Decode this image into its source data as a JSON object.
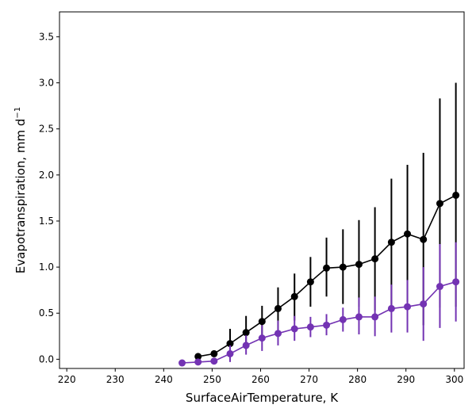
{
  "chart_data": {
    "type": "line",
    "xlabel": "SurfaceAirTemperature,  K",
    "ylabel": "Evapotranspiration,  mm d",
    "ylabel_superscript": "−1",
    "xlim": [
      218.5,
      302.0
    ],
    "ylim": [
      -0.1,
      3.77
    ],
    "x_ticks": [
      220,
      230,
      240,
      250,
      260,
      270,
      280,
      290,
      300
    ],
    "y_ticks": [
      0.0,
      0.5,
      1.0,
      1.5,
      2.0,
      2.5,
      3.0,
      3.5
    ],
    "x_tick_labels": [
      "220",
      "230",
      "240",
      "250",
      "260",
      "270",
      "280",
      "290",
      "300"
    ],
    "y_tick_labels": [
      "0.0",
      "0.5",
      "1.0",
      "1.5",
      "2.0",
      "2.5",
      "3.0",
      "3.5"
    ],
    "grid": false,
    "legend": false,
    "series": [
      {
        "color": "#000000",
        "points": [
          {
            "x": 247.1,
            "y": 0.03,
            "lo": 0.01,
            "hi": 0.05
          },
          {
            "x": 250.4,
            "y": 0.06,
            "lo": 0.03,
            "hi": 0.08
          },
          {
            "x": 253.7,
            "y": 0.17,
            "lo": 0.02,
            "hi": 0.33
          },
          {
            "x": 257.0,
            "y": 0.29,
            "lo": 0.11,
            "hi": 0.47
          },
          {
            "x": 260.3,
            "y": 0.41,
            "lo": 0.23,
            "hi": 0.58
          },
          {
            "x": 263.6,
            "y": 0.55,
            "lo": 0.31,
            "hi": 0.78
          },
          {
            "x": 267.0,
            "y": 0.68,
            "lo": 0.42,
            "hi": 0.93
          },
          {
            "x": 270.3,
            "y": 0.84,
            "lo": 0.57,
            "hi": 1.11
          },
          {
            "x": 273.6,
            "y": 0.99,
            "lo": 0.68,
            "hi": 1.32
          },
          {
            "x": 277.0,
            "y": 1.0,
            "lo": 0.6,
            "hi": 1.41
          },
          {
            "x": 280.3,
            "y": 1.03,
            "lo": 0.57,
            "hi": 1.51
          },
          {
            "x": 283.6,
            "y": 1.09,
            "lo": 0.53,
            "hi": 1.65
          },
          {
            "x": 287.0,
            "y": 1.27,
            "lo": 0.57,
            "hi": 1.96
          },
          {
            "x": 290.3,
            "y": 1.36,
            "lo": 0.62,
            "hi": 2.11
          },
          {
            "x": 293.6,
            "y": 1.3,
            "lo": 0.37,
            "hi": 2.24
          },
          {
            "x": 297.0,
            "y": 1.69,
            "lo": 0.56,
            "hi": 2.83
          },
          {
            "x": 300.3,
            "y": 1.78,
            "lo": 0.57,
            "hi": 3.0
          }
        ]
      },
      {
        "color": "#7333b3",
        "points": [
          {
            "x": 243.8,
            "y": -0.04,
            "lo": -0.05,
            "hi": -0.02
          },
          {
            "x": 247.1,
            "y": -0.03,
            "lo": -0.04,
            "hi": -0.01
          },
          {
            "x": 250.4,
            "y": -0.02,
            "lo": -0.04,
            "hi": 0.01
          },
          {
            "x": 253.7,
            "y": 0.06,
            "lo": -0.03,
            "hi": 0.15
          },
          {
            "x": 257.0,
            "y": 0.15,
            "lo": 0.05,
            "hi": 0.26
          },
          {
            "x": 260.3,
            "y": 0.23,
            "lo": 0.09,
            "hi": 0.37
          },
          {
            "x": 263.6,
            "y": 0.28,
            "lo": 0.15,
            "hi": 0.42
          },
          {
            "x": 267.0,
            "y": 0.33,
            "lo": 0.2,
            "hi": 0.47
          },
          {
            "x": 270.3,
            "y": 0.35,
            "lo": 0.24,
            "hi": 0.46
          },
          {
            "x": 273.6,
            "y": 0.37,
            "lo": 0.26,
            "hi": 0.49
          },
          {
            "x": 277.0,
            "y": 0.43,
            "lo": 0.3,
            "hi": 0.56
          },
          {
            "x": 280.3,
            "y": 0.46,
            "lo": 0.27,
            "hi": 0.67
          },
          {
            "x": 283.6,
            "y": 0.46,
            "lo": 0.25,
            "hi": 0.68
          },
          {
            "x": 287.0,
            "y": 0.55,
            "lo": 0.29,
            "hi": 0.81
          },
          {
            "x": 290.3,
            "y": 0.57,
            "lo": 0.29,
            "hi": 0.86
          },
          {
            "x": 293.6,
            "y": 0.6,
            "lo": 0.2,
            "hi": 1.0
          },
          {
            "x": 297.0,
            "y": 0.79,
            "lo": 0.34,
            "hi": 1.25
          },
          {
            "x": 300.3,
            "y": 0.84,
            "lo": 0.41,
            "hi": 1.27
          }
        ]
      }
    ]
  }
}
